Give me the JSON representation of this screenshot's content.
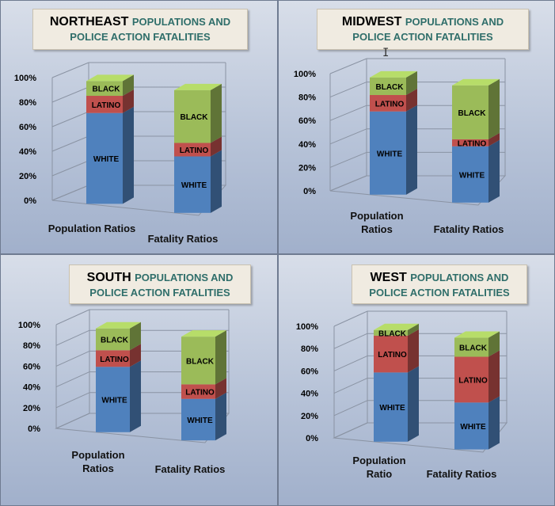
{
  "chart_data": [
    {
      "type": "bar",
      "region": "NORTHEAST",
      "title_rest": "POPULATIONS AND",
      "title_line2": "POLICE  ACTION FATALITIES",
      "categories": [
        "Population Ratios",
        "Fatality Ratios"
      ],
      "category_lines": [
        [
          "Population Ratios"
        ],
        [
          "Fatality Ratios"
        ]
      ],
      "series": [
        {
          "name": "WHITE",
          "values": [
            74,
            46
          ]
        },
        {
          "name": "LATINO",
          "values": [
            14,
            11
          ]
        },
        {
          "name": "BLACK",
          "values": [
            12,
            43
          ]
        }
      ],
      "y_ticks": [
        "0%",
        "20%",
        "40%",
        "60%",
        "80%",
        "100%"
      ],
      "ylim": [
        0,
        100
      ]
    },
    {
      "type": "bar",
      "region": "MIDWEST",
      "title_rest": "POPULATIONS AND",
      "title_line2": "POLICE  ACTION FATALITIES",
      "categories": [
        "Population Ratios",
        "Fatality Ratios"
      ],
      "category_lines": [
        [
          "Population",
          "Ratios"
        ],
        [
          "Fatality Ratios"
        ]
      ],
      "series": [
        {
          "name": "WHITE",
          "values": [
            71,
            48
          ]
        },
        {
          "name": "LATINO",
          "values": [
            14,
            6
          ]
        },
        {
          "name": "BLACK",
          "values": [
            15,
            46
          ]
        }
      ],
      "y_ticks": [
        "0%",
        "20%",
        "40%",
        "60%",
        "80%",
        "100%"
      ],
      "ylim": [
        0,
        100
      ]
    },
    {
      "type": "bar",
      "region": "SOUTH",
      "title_rest": "POPULATIONS AND",
      "title_line2": "POLICE ACTION FATALITIES",
      "categories": [
        "Population Ratios",
        "Fatality Ratios"
      ],
      "category_lines": [
        [
          "Population",
          "Ratios"
        ],
        [
          "Fatality Ratios"
        ]
      ],
      "series": [
        {
          "name": "WHITE",
          "values": [
            63,
            40
          ]
        },
        {
          "name": "LATINO",
          "values": [
            16,
            14
          ]
        },
        {
          "name": "BLACK",
          "values": [
            21,
            46
          ]
        }
      ],
      "y_ticks": [
        "0%",
        "20%",
        "40%",
        "60%",
        "80%",
        "100%"
      ],
      "ylim": [
        0,
        100
      ]
    },
    {
      "type": "bar",
      "region": "WEST",
      "title_rest": "POPULATIONS AND",
      "title_line2": "POLICE ACTION  FATALITIES",
      "categories": [
        "Population Ratio",
        "Fatality Ratios"
      ],
      "category_lines": [
        [
          "Population",
          "Ratio"
        ],
        [
          "Fatality Ratios"
        ]
      ],
      "series": [
        {
          "name": "WHITE",
          "values": [
            62,
            42
          ]
        },
        {
          "name": "LATINO",
          "values": [
            33,
            41
          ]
        },
        {
          "name": "BLACK",
          "values": [
            5,
            17
          ]
        }
      ],
      "y_ticks": [
        "0%",
        "20%",
        "40%",
        "60%",
        "80%",
        "100%"
      ],
      "ylim": [
        0,
        100
      ]
    }
  ],
  "colors": {
    "WHITE": "#4f81bd",
    "LATINO": "#c0504d",
    "BLACK": "#9bbb59"
  }
}
